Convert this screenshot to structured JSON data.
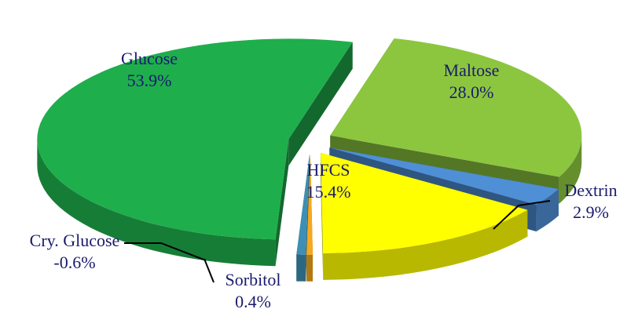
{
  "chart_data": {
    "type": "pie",
    "categories": [
      "Glucose",
      "Maltose",
      "Dextrin",
      "HFCS",
      "Sorbitol",
      "Cry. Glucose"
    ],
    "values": [
      53.9,
      28.0,
      2.9,
      15.4,
      0.4,
      -0.6
    ],
    "value_labels": [
      "53.9%",
      "28.0%",
      "2.9%",
      "15.4%",
      "0.4%",
      "-0.6%"
    ],
    "colors": [
      "#1fae4c",
      "#8cc63f",
      "#4f8fd6",
      "#ffff00",
      "#f7a81b",
      "#3d8fb3"
    ]
  }
}
